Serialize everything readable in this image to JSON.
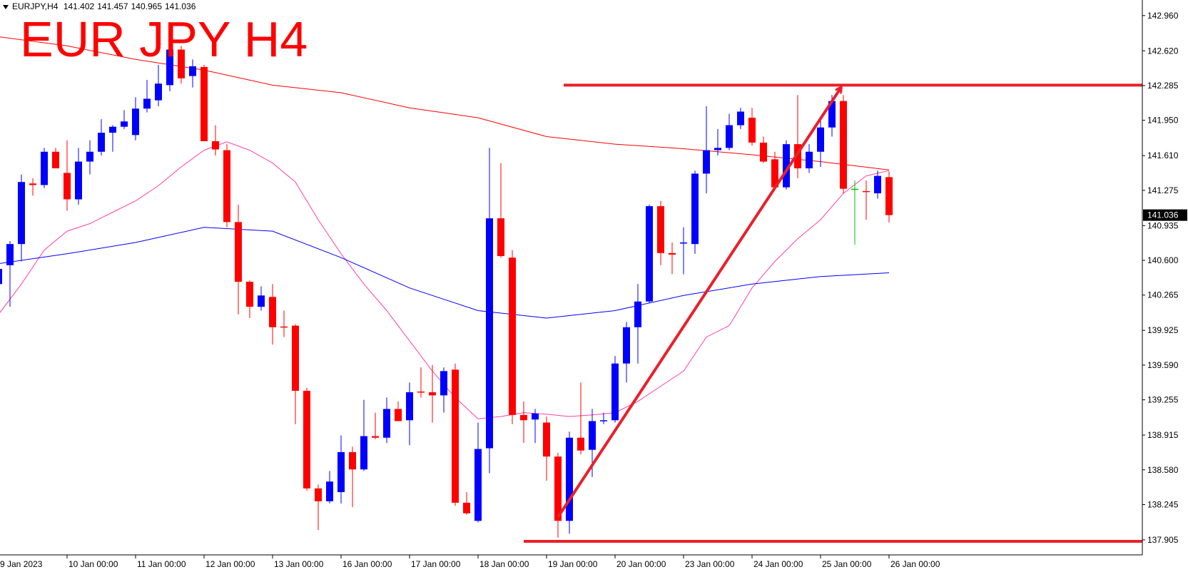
{
  "chart_data": {
    "type": "candlestick",
    "symbol": "EURJPY,H4",
    "title": "EUR JPY H4",
    "categories": [
      "9 Jan 2023",
      null,
      null,
      null,
      null,
      null,
      "10 Jan 00:00",
      null,
      null,
      null,
      null,
      null,
      "11 Jan 00:00",
      null,
      null,
      null,
      null,
      null,
      "12 Jan 00:00",
      null,
      null,
      null,
      null,
      null,
      "13 Jan 00:00",
      null,
      null,
      null,
      null,
      null,
      "16 Jan 00:00",
      null,
      null,
      null,
      null,
      null,
      "17 Jan 00:00",
      null,
      null,
      null,
      null,
      null,
      "18 Jan 00:00",
      null,
      null,
      null,
      null,
      null,
      "19 Jan 00:00",
      null,
      null,
      null,
      null,
      null,
      "20 Jan 00:00",
      null,
      null,
      null,
      null,
      null,
      "23 Jan 00:00",
      null,
      null,
      null,
      null,
      null,
      "24 Jan 00:00",
      null,
      null,
      null,
      null,
      null,
      "25 Jan 00:00",
      null,
      null,
      null,
      null,
      null,
      "26 Jan 00:00"
    ],
    "open": [
      140.371,
      140.553,
      140.757,
      141.341,
      141.326,
      141.647,
      141.443,
      141.188,
      141.552,
      141.647,
      141.83,
      141.888,
      141.808,
      142.063,
      142.143,
      142.289,
      142.632,
      142.377,
      142.464,
      141.749,
      141.662,
      140.969,
      140.393,
      140.152,
      140.247,
      139.962,
      139.97,
      139.342,
      138.401,
      138.277,
      138.365,
      138.751,
      138.584,
      138.905,
      138.89,
      139.167,
      139.058,
      139.335,
      139.328,
      139.298,
      139.546,
      138.263,
      138.088,
      138.788,
      141.005,
      140.626,
      139.109,
      139.065,
      139.036,
      138.708,
      138.088,
      138.89,
      138.773,
      139.05,
      139.058,
      139.605,
      139.955,
      140.203,
      141.122,
      140.67,
      140.765,
      140.757,
      141.436,
      141.662,
      141.684,
      141.903,
      141.975,
      141.735,
      141.574,
      141.304,
      141.72,
      141.487,
      141.647,
      141.881,
      142.136,
      141.29,
      141.268,
      141.246,
      141.402
    ],
    "high": [
      140.553,
      140.786,
      141.428,
      141.392,
      141.684,
      141.684,
      141.757,
      141.684,
      141.757,
      141.961,
      141.903,
      142.048,
      142.172,
      142.34,
      142.486,
      142.705,
      142.668,
      142.537,
      142.486,
      141.903,
      141.72,
      141.137,
      140.407,
      140.349,
      140.371,
      140.115,
      139.984,
      139.371,
      138.438,
      138.569,
      138.912,
      138.803,
      139.255,
      139.131,
      139.277,
      139.24,
      139.422,
      139.568,
      139.59,
      139.568,
      139.605,
      138.365,
      139.036,
      141.684,
      141.538,
      140.699,
      139.24,
      139.167,
      139.094,
      138.744,
      138.948,
      139.422,
      139.167,
      139.131,
      139.678,
      140.006,
      140.371,
      141.137,
      141.173,
      140.772,
      140.918,
      141.465,
      142.085,
      141.866,
      142.012,
      142.07,
      142.07,
      141.793,
      141.647,
      141.757,
      142.194,
      141.72,
      141.975,
      142.194,
      142.194,
      141.37,
      141.37,
      141.465,
      141.457
    ],
    "low": [
      140.334,
      140.152,
      140.59,
      141.224,
      141.297,
      141.487,
      141.078,
      141.137,
      141.428,
      141.611,
      141.647,
      141.866,
      141.757,
      142.026,
      142.085,
      142.231,
      142.304,
      142.267,
      141.749,
      141.611,
      140.918,
      140.079,
      140.043,
      140.115,
      139.787,
      139.86,
      139.021,
      138.379,
      138.0,
      138.256,
      138.256,
      138.22,
      138.569,
      138.876,
      138.839,
      139.05,
      138.817,
      139.277,
      139.036,
      139.131,
      138.234,
      138.147,
      138.073,
      138.547,
      140.626,
      139.021,
      138.839,
      138.839,
      138.474,
      137.927,
      137.964,
      138.73,
      138.511,
      139.021,
      139.036,
      139.422,
      139.605,
      140.188,
      140.553,
      140.466,
      140.466,
      140.663,
      141.246,
      141.611,
      141.662,
      141.866,
      141.706,
      141.538,
      141.283,
      141.283,
      141.392,
      141.443,
      141.501,
      141.793,
      141.246,
      140.75,
      140.991,
      141.195,
      140.965
    ],
    "close": [
      140.517,
      140.757,
      141.355,
      141.326,
      141.647,
      141.487,
      141.188,
      141.552,
      141.647,
      141.83,
      141.888,
      141.939,
      142.063,
      142.158,
      142.304,
      142.632,
      142.355,
      142.471,
      141.749,
      141.669,
      140.969,
      140.393,
      140.152,
      140.261,
      139.955,
      139.955,
      139.342,
      138.401,
      138.277,
      138.467,
      138.751,
      138.584,
      138.905,
      138.89,
      139.167,
      139.05,
      139.328,
      139.328,
      139.298,
      139.532,
      138.263,
      138.161,
      138.781,
      141.005,
      140.641,
      139.109,
      139.058,
      139.124,
      138.708,
      138.088,
      138.89,
      138.766,
      139.05,
      139.058,
      139.605,
      139.955,
      140.203,
      141.122,
      140.67,
      140.655,
      140.772,
      141.436,
      141.662,
      141.684,
      141.903,
      142.034,
      141.735,
      141.552,
      141.304,
      141.72,
      141.487,
      141.647,
      141.881,
      142.136,
      141.29,
      141.29,
      141.261,
      141.414,
      141.036
    ],
    "colors": {
      "up": "#0000ff",
      "down": "#ff0000",
      "doji": "#00c000"
    },
    "moving_averages": [
      {
        "color": "#ff0000",
        "x": [
          0,
          6,
          12,
          18,
          24,
          30,
          36,
          42,
          48,
          54,
          60,
          66,
          72,
          78
        ],
        "values": [
          142.756,
          142.668,
          142.537,
          142.435,
          142.289,
          142.216,
          142.07,
          141.975,
          141.793,
          141.72,
          141.676,
          141.618,
          141.552,
          141.472
        ]
      },
      {
        "color": "#ff3fa8",
        "x": [
          0,
          2,
          4,
          6,
          8,
          10,
          12,
          14,
          16,
          18,
          20,
          22,
          24,
          26,
          28,
          30,
          32,
          34,
          36,
          38,
          40,
          42,
          44,
          46,
          48,
          50,
          52,
          54,
          56,
          58,
          60,
          62,
          64,
          66,
          68,
          70,
          72,
          74,
          76,
          78
        ],
        "values": [
          140.079,
          140.371,
          140.699,
          140.881,
          140.954,
          141.064,
          141.173,
          141.319,
          141.501,
          141.662,
          141.742,
          141.662,
          141.538,
          141.355,
          140.991,
          140.663,
          140.371,
          140.115,
          139.824,
          139.532,
          139.277,
          139.072,
          139.094,
          139.131,
          139.116,
          139.094,
          139.109,
          139.131,
          139.24,
          139.386,
          139.532,
          139.86,
          139.97,
          140.334,
          140.59,
          140.808,
          140.991,
          141.246,
          141.414,
          141.465
        ]
      },
      {
        "color": "#0000ff",
        "x": [
          0,
          6,
          12,
          18,
          24,
          30,
          36,
          42,
          48,
          54,
          60,
          66,
          72,
          78
        ],
        "values": [
          140.568,
          140.663,
          140.772,
          140.918,
          140.881,
          140.626,
          140.334,
          140.115,
          140.043,
          140.115,
          140.261,
          140.371,
          140.444,
          140.48
        ]
      }
    ],
    "levels": [
      {
        "value": 142.289,
        "start": 49.5,
        "color": "#e8202a"
      },
      {
        "value": 137.891,
        "start": 46,
        "color": "#e8202a"
      }
    ],
    "arrow": {
      "x": [
        49,
        73.8
      ],
      "y": [
        138.124,
        142.267
      ],
      "color": "#e8202a"
    },
    "ylim": [
      137.76,
      143.11
    ],
    "yticks": [
      {
        "value": 142.96,
        "label": "142.960"
      },
      {
        "value": 142.62,
        "label": "142.620"
      },
      142.285,
      {
        "value": 141.95,
        "label": "141.950"
      },
      {
        "value": 141.61,
        "label": "141.610"
      },
      141.275,
      140.935,
      {
        "value": 140.6,
        "label": "140.600"
      },
      140.265,
      139.925,
      {
        "value": 139.59,
        "label": "139.590"
      },
      139.255,
      138.915,
      {
        "value": 138.58,
        "label": "138.580"
      },
      138.245,
      137.905
    ]
  }
}
